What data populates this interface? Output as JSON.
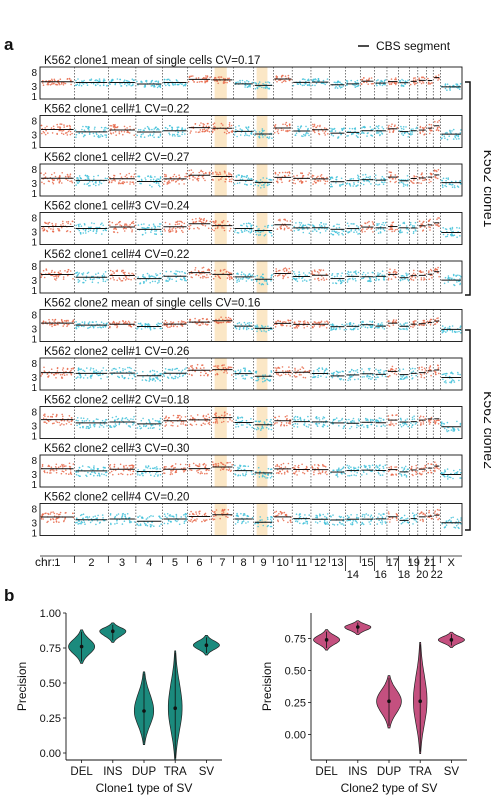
{
  "panel_a": {
    "label": "a",
    "legend": "CBS segment",
    "chr_prefix": "chr:",
    "chromosomes": [
      "1",
      "2",
      "3",
      "4",
      "5",
      "6",
      "7",
      "8",
      "9",
      "10",
      "11",
      "12",
      "13",
      "14",
      "15",
      "16",
      "17",
      "18",
      "19",
      "20",
      "21",
      "22",
      "X"
    ],
    "y_ticks": [
      "8",
      "3",
      "1"
    ],
    "clone_labels": [
      "K562 clone1",
      "K562 clone2"
    ],
    "tracks": [
      {
        "title": "K562 clone1 mean of single cells CV=0.17",
        "clone": 1
      },
      {
        "title": "K562 clone1 cell#1 CV=0.22",
        "clone": 1
      },
      {
        "title": "K562 clone1 cell#2 CV=0.27",
        "clone": 1
      },
      {
        "title": "K562 clone1 cell#3 CV=0.24",
        "clone": 1
      },
      {
        "title": "K562 clone1 cell#4 CV=0.22",
        "clone": 1
      },
      {
        "title": "K562 clone2 mean of single cells CV=0.16",
        "clone": 2
      },
      {
        "title": "K562 clone2 cell#1 CV=0.26",
        "clone": 2
      },
      {
        "title": "K562 clone2 cell#2 CV=0.18",
        "clone": 2
      },
      {
        "title": "K562 clone2 cell#3 CV=0.30",
        "clone": 2
      },
      {
        "title": "K562 clone2 cell#4 CV=0.20",
        "clone": 2
      }
    ],
    "colors": {
      "gain": "#e8694a",
      "loss": "#3fc1d9",
      "neutral_mix": "#c97a6a",
      "segment": "#111111",
      "highlight": "#fbe7c6"
    }
  },
  "panel_b": {
    "label": "b",
    "charts": [
      {
        "ylabel": "Precision",
        "xlabel": "Clone1 type of SV",
        "categories": [
          "DEL",
          "INS",
          "DUP",
          "TRA",
          "SV"
        ],
        "yticks": [
          "1.00",
          "0.75",
          "0.50",
          "0.25",
          "0.00"
        ],
        "color": "#1b8a7d"
      },
      {
        "ylabel": "Precision",
        "xlabel": "Clone2 type of SV",
        "categories": [
          "DEL",
          "INS",
          "DUP",
          "TRA",
          "SV"
        ],
        "yticks": [
          "0.75",
          "0.50",
          "0.25",
          "0.00"
        ],
        "color": "#c4507f"
      }
    ]
  },
  "chart_data": [
    {
      "type": "scatter",
      "description_of_panel": "copy-number tracks",
      "y_scale": "log",
      "ylim": [
        1,
        8
      ],
      "series": [
        {
          "name": "CBS segment",
          "values": []
        }
      ],
      "categories": [
        "1",
        "2",
        "3",
        "4",
        "5",
        "6",
        "7",
        "8",
        "9",
        "10",
        "11",
        "12",
        "13",
        "14",
        "15",
        "16",
        "17",
        "18",
        "19",
        "20",
        "21",
        "22",
        "X"
      ]
    },
    {
      "type": "violin",
      "title": "",
      "xlabel": "Clone1 type of SV",
      "ylabel": "Precision",
      "categories": [
        "DEL",
        "INS",
        "DUP",
        "TRA",
        "SV"
      ],
      "ylim": [
        -0.05,
        1.0
      ],
      "median": [
        0.76,
        0.87,
        0.3,
        0.32,
        0.77
      ],
      "min": [
        0.64,
        0.79,
        0.06,
        -0.05,
        0.7
      ],
      "max": [
        0.88,
        0.93,
        0.58,
        0.73,
        0.84
      ]
    },
    {
      "type": "violin",
      "title": "",
      "xlabel": "Clone2 type of SV",
      "ylabel": "Precision",
      "categories": [
        "DEL",
        "INS",
        "DUP",
        "TRA",
        "SV"
      ],
      "ylim": [
        -0.05,
        0.95
      ],
      "median": [
        0.74,
        0.84,
        0.26,
        0.26,
        0.74
      ],
      "min": [
        0.66,
        0.78,
        0.05,
        -0.15,
        0.68
      ],
      "max": [
        0.82,
        0.89,
        0.46,
        0.72,
        0.8
      ]
    }
  ]
}
